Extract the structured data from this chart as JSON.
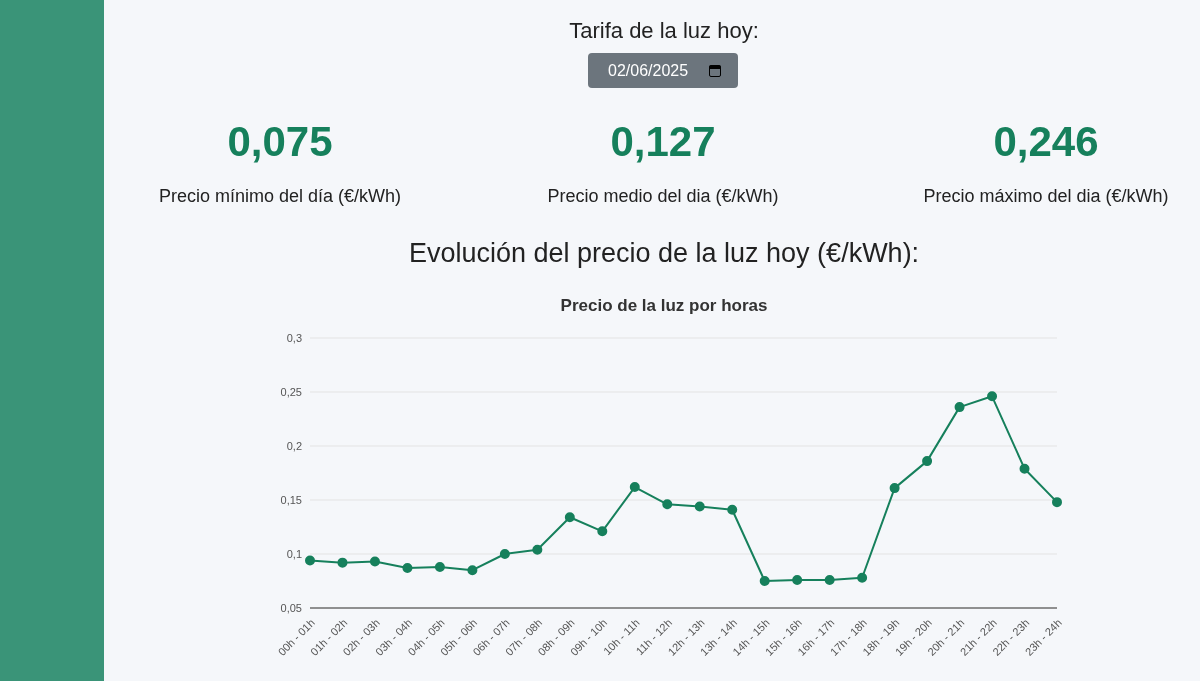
{
  "chart_data": {
    "type": "line",
    "title": "Precio de la luz por horas",
    "subtitle": "Evolución del precio de la luz hoy (€/kWh):",
    "annotations": [
      "Tarifa de la luz hoy:",
      "02/06/2025",
      "0,075",
      "Precio mínimo del día (€/kWh)",
      "0,127",
      "Precio medio del dia (€/kWh)",
      "0,246",
      "Precio máximo del dia (€/kWh)"
    ],
    "categories": [
      "00h - 01h",
      "01h - 02h",
      "02h - 03h",
      "03h - 04h",
      "04h - 05h",
      "05h - 06h",
      "06h - 07h",
      "07h - 08h",
      "08h - 09h",
      "09h - 10h",
      "10h - 11h",
      "11h - 12h",
      "12h - 13h",
      "13h - 14h",
      "14h - 15h",
      "15h - 16h",
      "16h - 17h",
      "17h - 18h",
      "18h - 19h",
      "19h - 20h",
      "20h - 21h",
      "21h - 22h",
      "22h - 23h",
      "23h - 24h"
    ],
    "series": [
      {
        "color": "#16805c",
        "values": [
          0.094,
          0.092,
          0.093,
          0.087,
          0.088,
          0.085,
          0.1,
          0.104,
          0.134,
          0.121,
          0.162,
          0.146,
          0.144,
          0.141,
          0.075,
          0.076,
          0.076,
          0.078,
          0.161,
          0.186,
          0.236,
          0.246,
          0.179,
          0.148
        ]
      }
    ],
    "ylim": [
      0.05,
      0.3
    ],
    "yticks": [
      {
        "value": 0.05,
        "label": "0,05"
      },
      {
        "value": 0.1,
        "label": "0,1"
      },
      {
        "value": 0.15,
        "label": "0,15"
      },
      {
        "value": 0.2,
        "label": "0,2"
      },
      {
        "value": 0.25,
        "label": "0,25"
      },
      {
        "value": 0.3,
        "label": "0,3"
      }
    ],
    "grid": "y",
    "marker": "circle",
    "line_style": "solid",
    "legend": false
  }
}
